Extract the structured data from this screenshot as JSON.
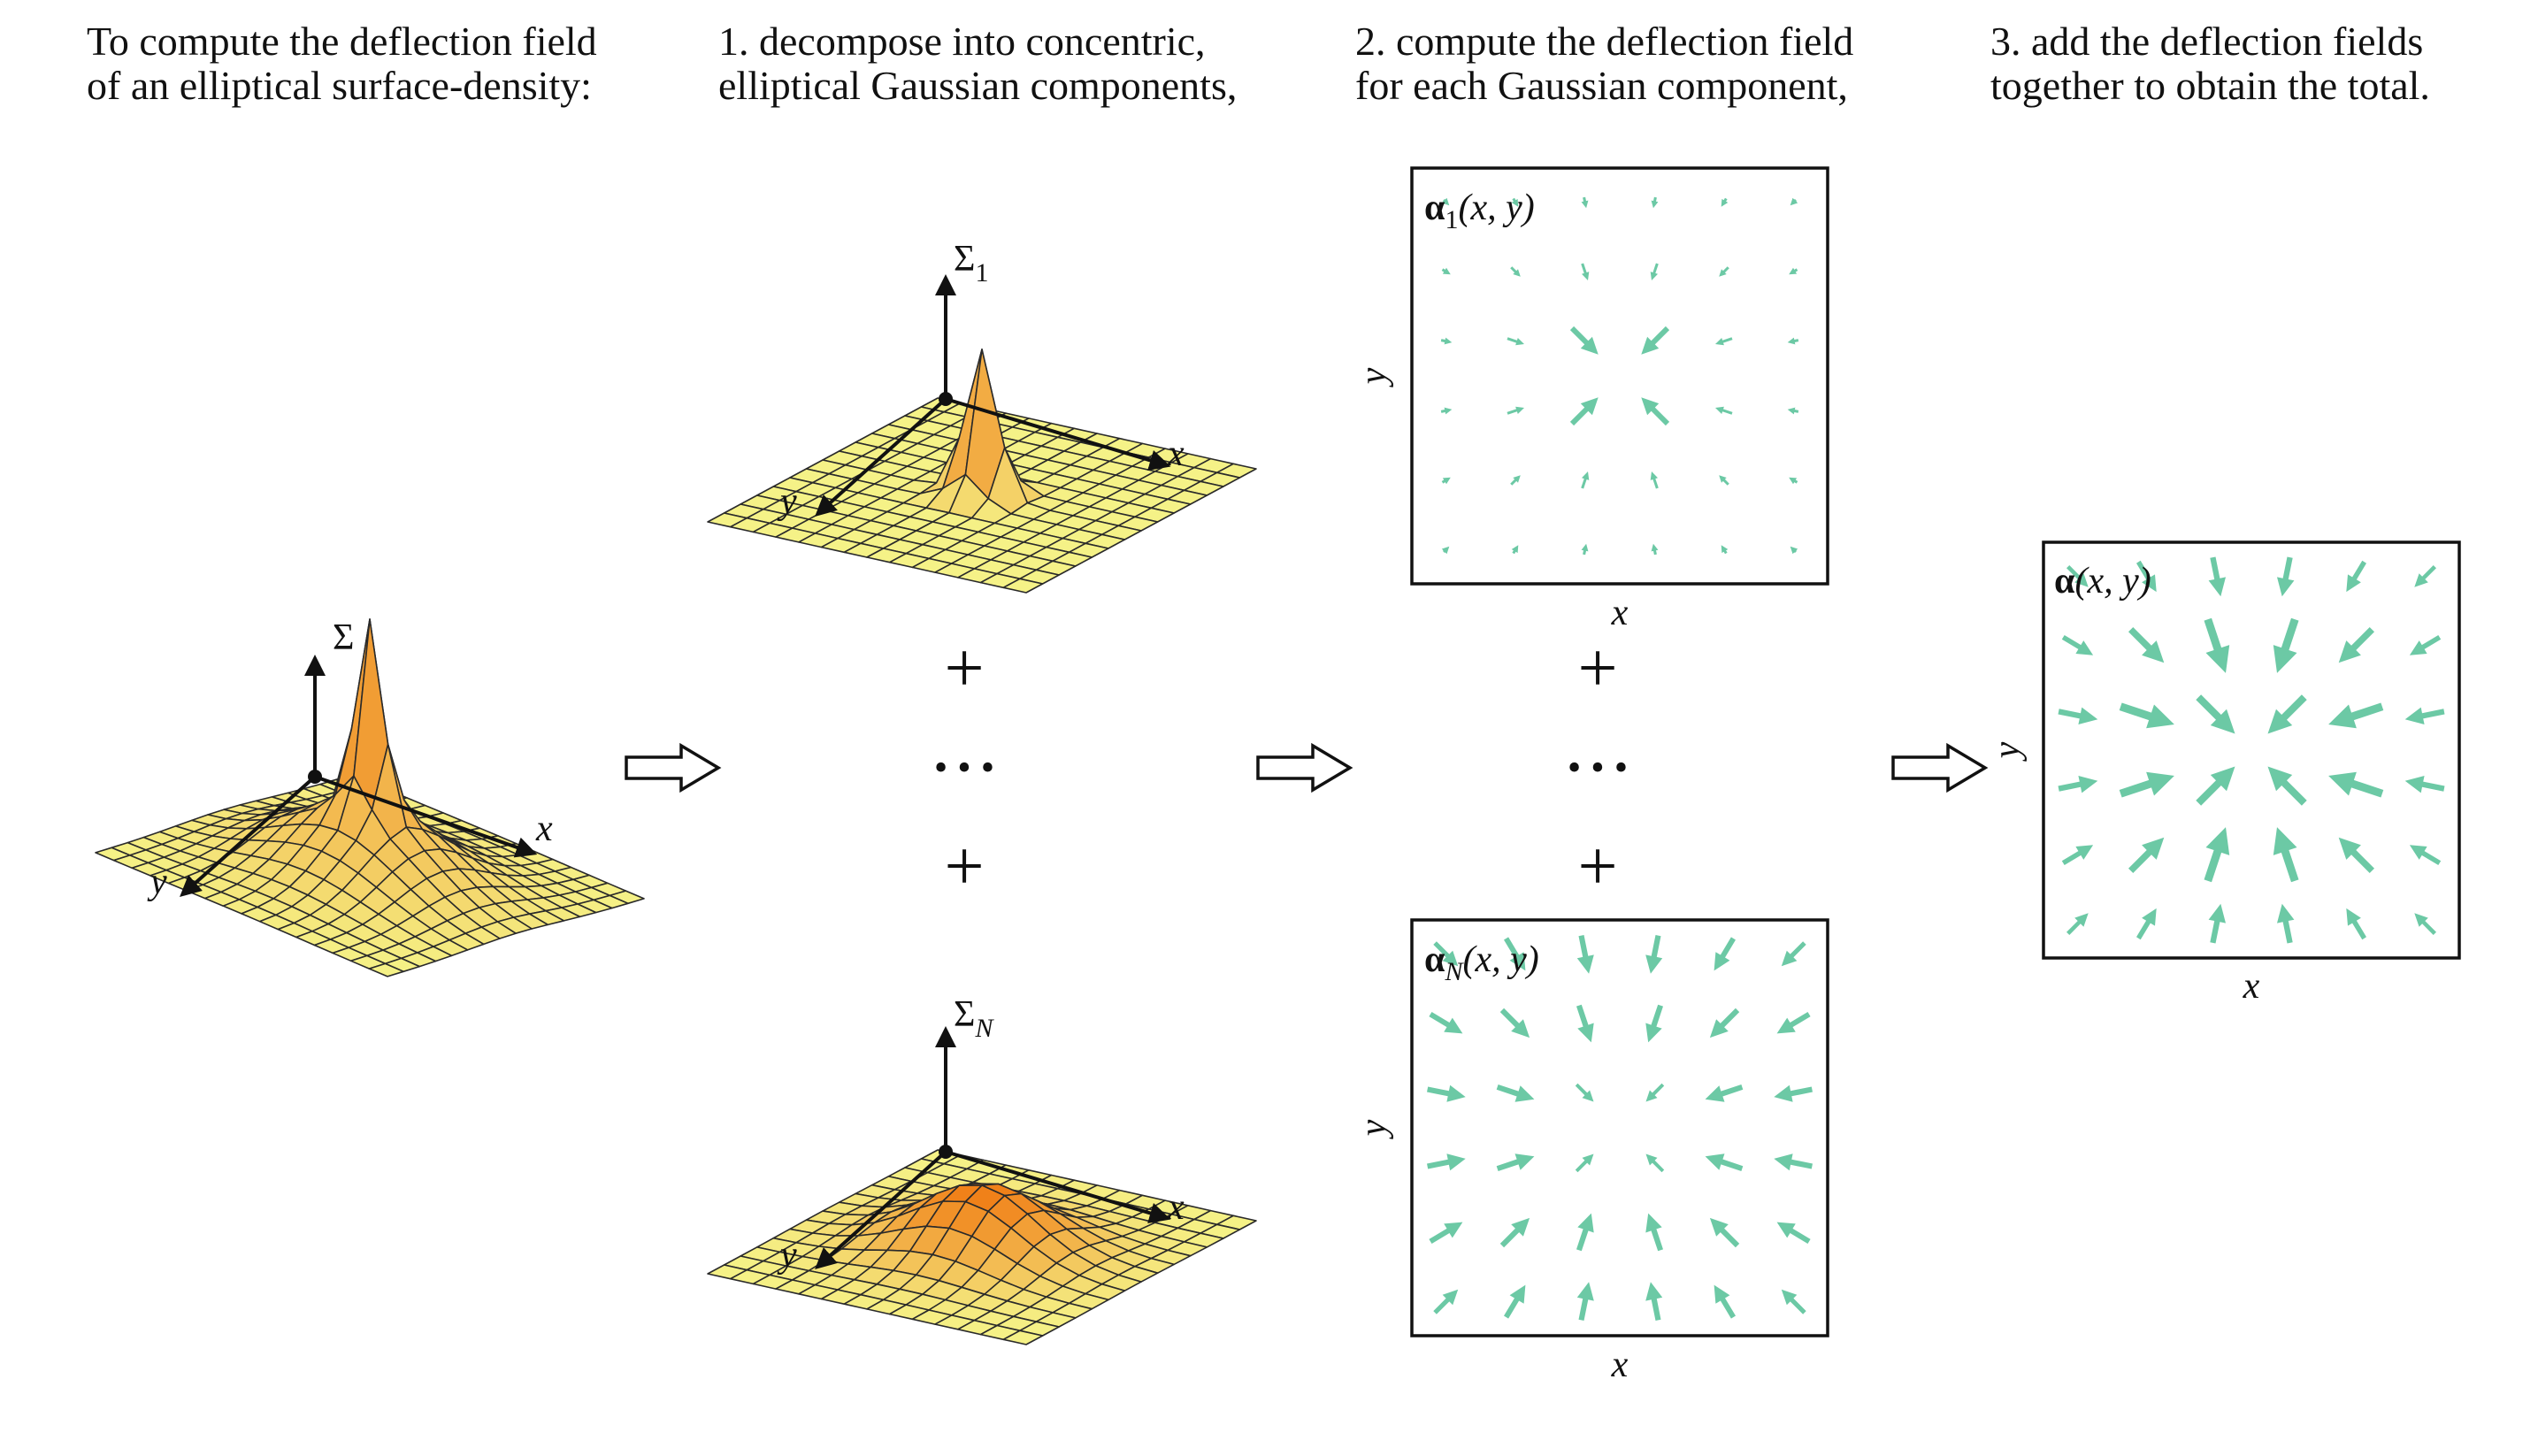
{
  "steps": [
    {
      "line1": "To compute the deflection field",
      "line2": "of an elliptical surface-density:"
    },
    {
      "line1": "1. decompose into concentric,",
      "line2": "elliptical Gaussian components,"
    },
    {
      "line1": "2. compute the deflection field",
      "line2": "for each Gaussian component,"
    },
    {
      "line1": "3. add the deflection fields",
      "line2": "together to obtain the total."
    }
  ],
  "surfaces": {
    "total": {
      "z_axis": "Σ",
      "x_axis": "x",
      "y_axis": "y"
    },
    "first": {
      "z_axis": "Σ",
      "z_sub": "1",
      "x_axis": "x",
      "y_axis": "y"
    },
    "last": {
      "z_axis": "Σ",
      "z_sub": "N",
      "x_axis": "x",
      "y_axis": "y"
    }
  },
  "fields": {
    "first": {
      "label": "α",
      "sub": "1",
      "args": "(x, y)",
      "x_axis": "x",
      "y_axis": "y"
    },
    "last": {
      "label": "α",
      "sub": "N",
      "args": "(x, y)",
      "x_axis": "x",
      "y_axis": "y"
    },
    "total": {
      "label": "α",
      "sub": "",
      "args": "(x, y)",
      "x_axis": "x",
      "y_axis": "y"
    }
  },
  "operators": {
    "plus": "+",
    "ellipsis": "• • •"
  },
  "colors": {
    "arrow": "#6cc9a5",
    "surface_low": "#f5f287",
    "surface_high": "#f07a12",
    "mesh": "#2a2a2a",
    "ink": "#111111"
  }
}
